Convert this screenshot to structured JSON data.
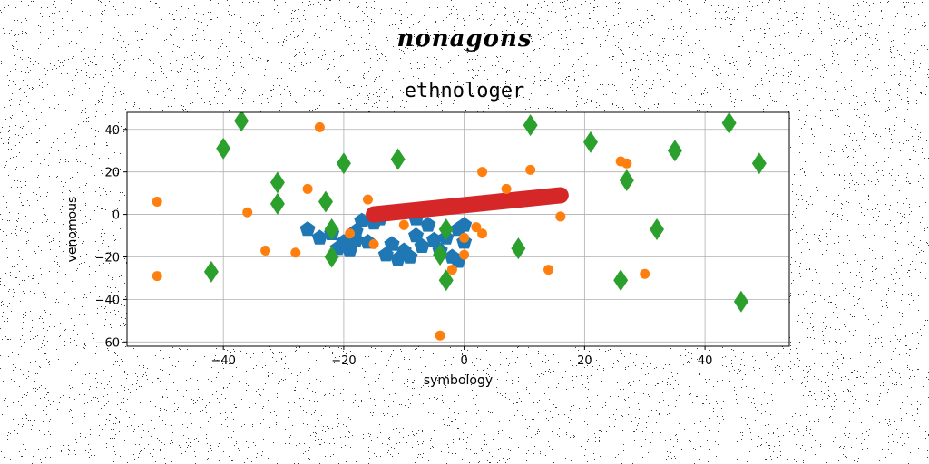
{
  "figure": {
    "title": "nonagons"
  },
  "chart_data": {
    "type": "scatter",
    "title": "ethnologer",
    "xlabel": "symbology",
    "ylabel": "venomous",
    "xlim": [
      -56,
      54
    ],
    "ylim": [
      -62,
      48
    ],
    "xticks": [
      -40,
      -20,
      0,
      20,
      40
    ],
    "yticks": [
      -60,
      -40,
      -20,
      0,
      20,
      40
    ],
    "grid": true,
    "colors": {
      "blue": "#1f77b4",
      "orange": "#ff7f0e",
      "green": "#2ca02c",
      "red": "#d62728",
      "grid": "#b0b0b0"
    },
    "series": [
      {
        "marker": "pentagon",
        "color": "#1f77b4",
        "points": [
          [
            -26,
            -7
          ],
          [
            -24,
            -11
          ],
          [
            -22,
            -9
          ],
          [
            -21,
            -16
          ],
          [
            -20,
            -13
          ],
          [
            -19,
            -17
          ],
          [
            -18,
            -12
          ],
          [
            -17,
            -3
          ],
          [
            -18,
            -8
          ],
          [
            -16,
            -13
          ],
          [
            -15,
            -4
          ],
          [
            -14,
            -2
          ],
          [
            -13,
            -19
          ],
          [
            -12,
            -14
          ],
          [
            -11,
            -21
          ],
          [
            -10,
            -17
          ],
          [
            -9,
            -20
          ],
          [
            -8,
            -2
          ],
          [
            -8,
            -10
          ],
          [
            -7,
            -15
          ],
          [
            -6,
            -5
          ],
          [
            -5,
            -12
          ],
          [
            -4,
            -17
          ],
          [
            -3,
            -11
          ],
          [
            -2,
            -20
          ],
          [
            -1,
            -7
          ],
          [
            0,
            -5
          ],
          [
            0,
            -13
          ],
          [
            -1,
            -22
          ]
        ]
      },
      {
        "marker": "circle",
        "color": "#ff7f0e",
        "points": [
          [
            -51,
            6
          ],
          [
            -51,
            -29
          ],
          [
            -36,
            1
          ],
          [
            -33,
            -17
          ],
          [
            -28,
            -18
          ],
          [
            -26,
            12
          ],
          [
            -24,
            41
          ],
          [
            -19,
            -9
          ],
          [
            -16,
            7
          ],
          [
            -15,
            -14
          ],
          [
            -10,
            -5
          ],
          [
            -4,
            -57
          ],
          [
            -2,
            -26
          ],
          [
            0,
            -11
          ],
          [
            0,
            -19
          ],
          [
            2,
            -6
          ],
          [
            3,
            20
          ],
          [
            3,
            -9
          ],
          [
            7,
            12
          ],
          [
            11,
            21
          ],
          [
            14,
            -26
          ],
          [
            16,
            -1
          ],
          [
            26,
            25
          ],
          [
            27,
            24
          ],
          [
            30,
            -28
          ]
        ]
      },
      {
        "marker": "diamond",
        "color": "#2ca02c",
        "points": [
          [
            -37,
            44
          ],
          [
            -40,
            31
          ],
          [
            -42,
            -27
          ],
          [
            -31,
            15
          ],
          [
            -31,
            5
          ],
          [
            -23,
            6
          ],
          [
            -22,
            -7
          ],
          [
            -22,
            -20
          ],
          [
            -20,
            24
          ],
          [
            -11,
            26
          ],
          [
            -3,
            -7
          ],
          [
            -4,
            -19
          ],
          [
            -3,
            -31
          ],
          [
            9,
            -16
          ],
          [
            11,
            42
          ],
          [
            21,
            34
          ],
          [
            27,
            16
          ],
          [
            26,
            -31
          ],
          [
            32,
            -7
          ],
          [
            35,
            30
          ],
          [
            44,
            43
          ],
          [
            46,
            -41
          ],
          [
            49,
            24
          ]
        ]
      }
    ],
    "segment": {
      "color": "#d62728",
      "x": [
        -15,
        16
      ],
      "y": [
        0,
        9
      ]
    }
  }
}
